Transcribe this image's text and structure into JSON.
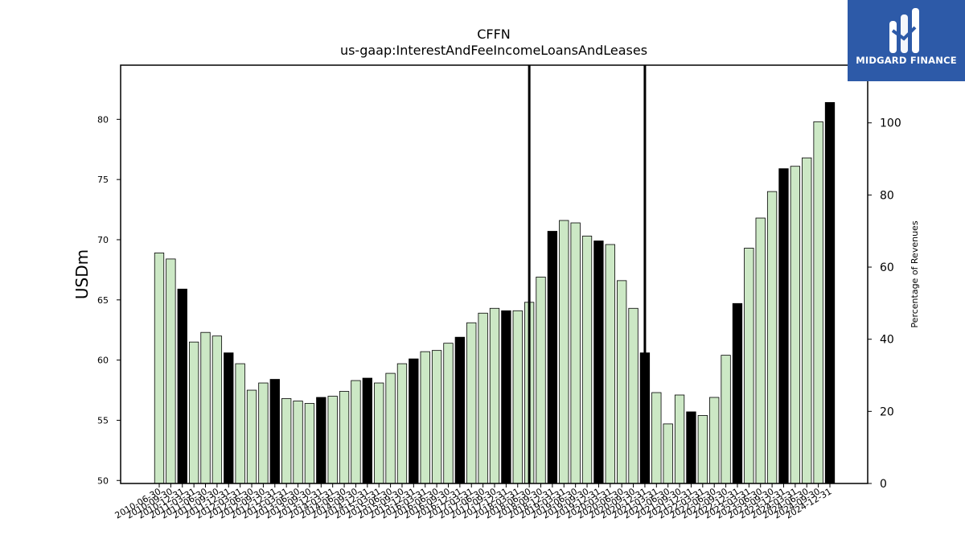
{
  "chart_data": {
    "type": "bar",
    "title": "CFFN",
    "subtitle": "us-gaap:InterestAndFeeIncomeLoansAndLeases",
    "ylabel": "USDm",
    "y2label": "Percentage of Revenues",
    "ylim": [
      49.75,
      84.5
    ],
    "y2lim": [
      0,
      116
    ],
    "yticks": [
      50,
      55,
      60,
      65,
      70,
      75,
      80
    ],
    "y2ticks": [
      0,
      20,
      40,
      60,
      80,
      100
    ],
    "vlines": [
      "2018-06-30",
      "2020-12-31"
    ],
    "colors": {
      "quarter": "#cce8c5",
      "annual": "#000000",
      "edge": "#000000"
    },
    "categories": [
      "2010-06-30",
      "2010-09-30",
      "2010-12-31",
      "2011-03-31",
      "2011-06-30",
      "2011-09-30",
      "2011-12-31",
      "2012-03-31",
      "2012-06-30",
      "2012-09-30",
      "2012-12-31",
      "2013-03-31",
      "2013-06-30",
      "2013-09-30",
      "2013-12-31",
      "2014-03-31",
      "2014-06-30",
      "2014-09-30",
      "2014-12-31",
      "2015-03-31",
      "2015-06-30",
      "2015-09-30",
      "2015-12-31",
      "2016-03-31",
      "2016-06-30",
      "2016-09-30",
      "2016-12-31",
      "2017-03-31",
      "2017-06-30",
      "2017-09-30",
      "2017-12-31",
      "2018-03-31",
      "2018-06-30",
      "2018-09-30",
      "2018-12-31",
      "2019-03-31",
      "2019-06-30",
      "2019-09-30",
      "2019-12-31",
      "2020-03-31",
      "2020-06-30",
      "2020-09-30",
      "2020-12-31",
      "2021-03-31",
      "2021-06-30",
      "2021-09-30",
      "2021-12-31",
      "2022-03-31",
      "2022-06-30",
      "2022-09-30",
      "2022-12-31",
      "2023-03-31",
      "2023-06-30",
      "2023-09-30",
      "2023-12-31",
      "2024-03-31",
      "2024-06-30",
      "2024-09-30",
      "2024-12-31"
    ],
    "tick_labels": [
      "2010-06-30",
      "2010-09-30",
      "2010-12-31",
      "2011-03-31",
      "2011-06-30",
      "2011-09-30",
      "2011-12-31",
      "2012-03-31",
      "2012-06-30",
      "2012-09-30",
      "2012-12-31",
      "2013-03-31",
      "2013-06-30",
      "2013-09-30",
      "2013-12-31",
      "2014-03-31",
      "2014-06-30",
      "2014-09-30",
      "2014-12-31",
      "2015-03-31",
      "2015-06-30",
      "2015-09-30",
      "2015-12-31",
      "2016-03-31",
      "2016-06-30",
      "2016-09-30",
      "2016-12-31",
      "2017-03-31",
      "2017-06-30",
      "2017-09-30",
      "2017-12-31",
      "2018-03-31",
      "2018-06-30",
      "2018-09-30",
      "2018-12-31",
      "2019-03-31",
      "2019-06-30",
      "2019-09-30",
      "2019-12-31",
      "2020-03-31",
      "2020-06-30",
      "2020-09-30",
      "2020-12-31",
      "2021-03-31",
      "2021-06-30",
      "2021-09-30",
      "2021-12-31",
      "2022-03-31",
      "2022-06-30",
      "2022-09-30",
      "2022-12-31",
      "2023-03-31",
      "2023-06-30",
      "2023-09-30",
      "2023-12-31",
      "2024-03-31",
      "2024-06-30",
      "2024-09-30",
      "2024-12-31"
    ],
    "values": [
      68.9,
      68.4,
      65.9,
      61.5,
      62.3,
      62.0,
      60.6,
      59.7,
      57.5,
      58.1,
      58.4,
      56.8,
      56.6,
      56.4,
      56.9,
      57.0,
      57.4,
      58.3,
      58.5,
      58.1,
      58.9,
      59.7,
      60.1,
      60.7,
      60.8,
      61.4,
      61.9,
      63.1,
      63.9,
      64.3,
      64.1,
      64.1,
      64.8,
      66.9,
      70.7,
      71.6,
      71.4,
      70.3,
      69.9,
      69.6,
      66.6,
      64.3,
      60.6,
      57.3,
      54.7,
      57.1,
      55.7,
      55.4,
      56.9,
      60.4,
      64.7,
      69.3,
      71.8,
      74.0,
      75.9,
      76.1,
      76.8,
      79.8,
      81.4
    ],
    "is_annual": [
      false,
      false,
      true,
      false,
      false,
      false,
      true,
      false,
      false,
      false,
      true,
      false,
      false,
      false,
      true,
      false,
      false,
      false,
      true,
      false,
      false,
      false,
      true,
      false,
      false,
      false,
      true,
      false,
      false,
      false,
      true,
      false,
      false,
      false,
      true,
      false,
      false,
      false,
      true,
      false,
      false,
      false,
      true,
      false,
      false,
      false,
      true,
      false,
      false,
      false,
      true,
      false,
      false,
      false,
      true,
      false,
      false,
      false,
      true
    ]
  },
  "brand": {
    "name": "MIDGARD FINANCE",
    "background": "#2d5aa8"
  }
}
